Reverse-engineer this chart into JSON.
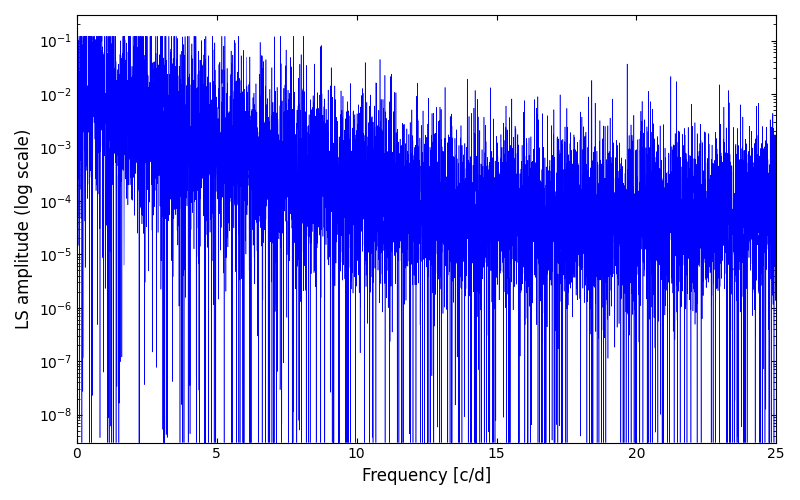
{
  "title": "",
  "xlabel": "Frequency [c/d]",
  "ylabel": "LS amplitude (log scale)",
  "line_color": "#0000ff",
  "line_width": 0.4,
  "xlim": [
    0,
    25
  ],
  "ylim": [
    3e-09,
    0.3
  ],
  "xticks": [
    0,
    5,
    10,
    15,
    20,
    25
  ],
  "background_color": "#ffffff",
  "n_points": 8000,
  "seed": 7,
  "freq_max": 25.0,
  "figsize": [
    8.0,
    5.0
  ],
  "dpi": 100
}
